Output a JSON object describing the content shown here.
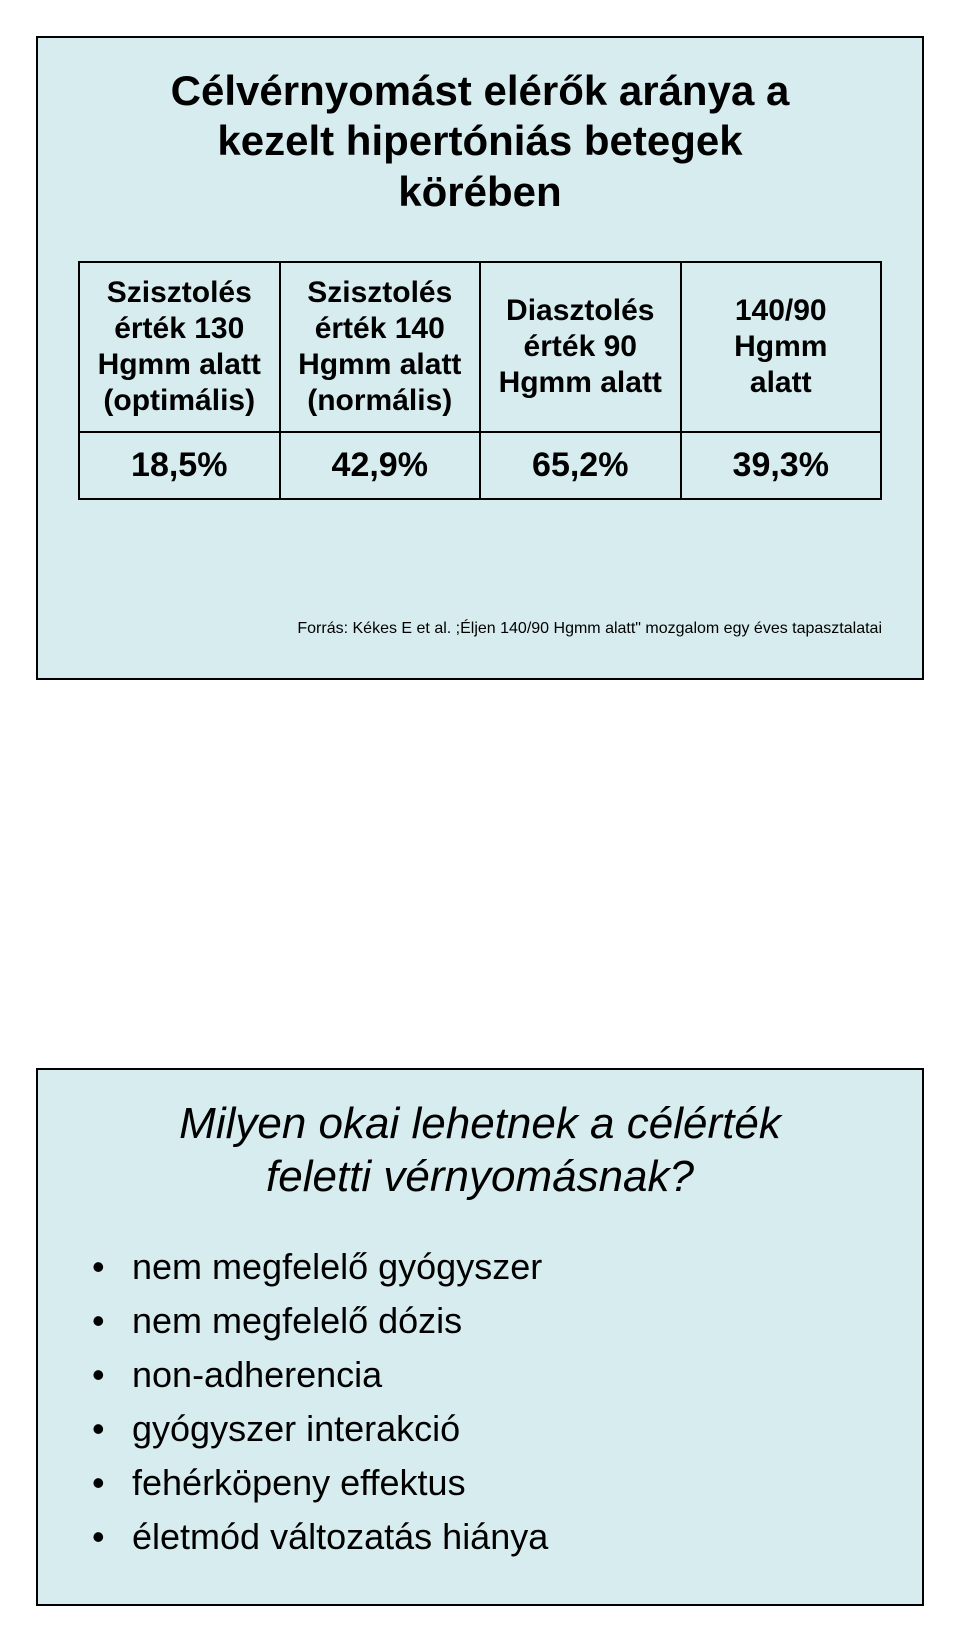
{
  "colors": {
    "panel_background": "#d7ecef",
    "border": "#000000",
    "text": "#000000"
  },
  "typography": {
    "title_font_family": "Comic Sans MS",
    "title_font_size_pt": 32,
    "body_font_size_pt": 22,
    "source_font_family": "Arial",
    "source_font_size_pt": 12
  },
  "top_panel": {
    "title": "Célvérnyomást elérők aránya a\nkezelt hipertóniás betegek\nkörében",
    "table": {
      "type": "table",
      "columns": [
        "Szisztolés\nérték 130\nHgmm alatt\n(optimális)",
        "Szisztolés\nérték 140\nHgmm alatt\n(normális)",
        "Diasztolés\nérték 90\nHgmm alatt",
        "140/90\nHgmm\nalatt"
      ],
      "rows": [
        [
          "18,5%",
          "42,9%",
          "65,2%",
          "39,3%"
        ]
      ],
      "border_color": "#000000",
      "cell_background": "#d7ecef",
      "header_font_size_pt": 22,
      "value_font_size_pt": 26,
      "font_weight": "bold"
    },
    "source": "Forrás: Kékes E et al. ;Éljen 140/90 Hgmm alatt\" mozgalom egy éves tapasztalatai"
  },
  "bottom_panel": {
    "title": "Milyen okai lehetnek a célérték\nfeletti vérnyomásnak?",
    "bullets": [
      "nem megfelelő gyógyszer",
      "nem megfelelő dózis",
      "non-adherencia",
      "gyógyszer interakció",
      "fehérköpeny effektus",
      "életmód változatás hiánya"
    ],
    "bullet_font_size_pt": 26
  }
}
